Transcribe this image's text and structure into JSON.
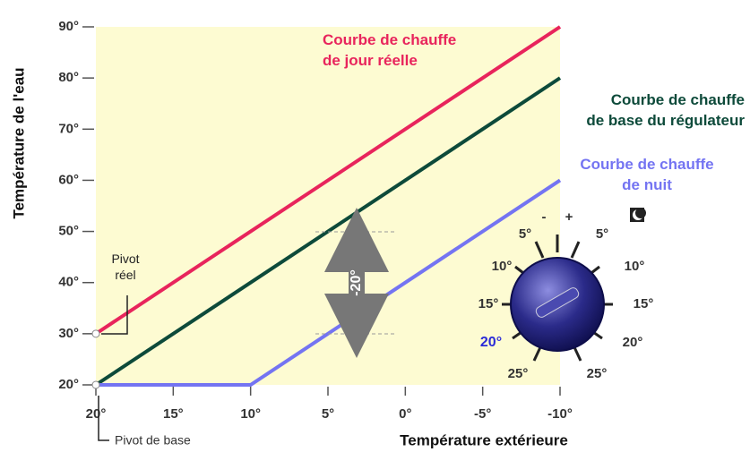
{
  "chart_data": {
    "type": "line",
    "xlabel": "Température extérieure",
    "ylabel": "Température de l'eau",
    "xlim": [
      20,
      -10
    ],
    "ylim": [
      20,
      90
    ],
    "xticks": [
      {
        "value": 20,
        "label": "20°"
      },
      {
        "value": 15,
        "label": "15°"
      },
      {
        "value": 10,
        "label": "10°"
      },
      {
        "value": 5,
        "label": "5°"
      },
      {
        "value": 0,
        "label": "0°"
      },
      {
        "value": -5,
        "label": "-5°"
      },
      {
        "value": -10,
        "label": "-10°"
      }
    ],
    "yticks": [
      {
        "value": 20,
        "label": "20°"
      },
      {
        "value": 30,
        "label": "30°"
      },
      {
        "value": 40,
        "label": "40°"
      },
      {
        "value": 50,
        "label": "50°"
      },
      {
        "value": 60,
        "label": "60°"
      },
      {
        "value": 70,
        "label": "70°"
      },
      {
        "value": 80,
        "label": "80°"
      },
      {
        "value": 90,
        "label": "90°"
      }
    ],
    "grid": false,
    "background": "#fdfbd2",
    "series": [
      {
        "name": "Courbe de chauffe\nde jour réelle",
        "color": "#e8245c",
        "x": [
          20,
          -10
        ],
        "values": [
          30,
          90
        ]
      },
      {
        "name": "Courbe de chauffe\nde base du régulateur",
        "color": "#0d4a3a",
        "x": [
          20,
          -10
        ],
        "values": [
          20,
          80
        ]
      },
      {
        "name": "Courbe de chauffe\nde nuit",
        "color": "#7474f2",
        "x": [
          20,
          10,
          -10
        ],
        "values": [
          20,
          20,
          60
        ]
      }
    ],
    "annotations": {
      "pivot_real": "Pivot\nréel",
      "pivot_base": "Pivot de base",
      "shift": "-20°",
      "dial": {
        "minus": "-",
        "plus": "+",
        "left_labels": [
          "5°",
          "10°",
          "15°",
          "20°",
          "25°"
        ],
        "right_labels": [
          "5°",
          "10°",
          "15°",
          "20°",
          "25°"
        ]
      }
    }
  }
}
